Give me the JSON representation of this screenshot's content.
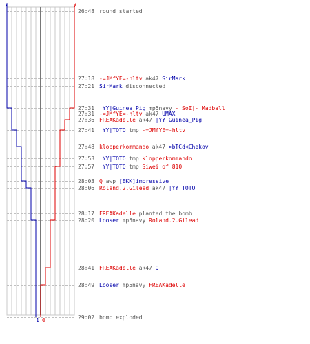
{
  "colors": {
    "team_a": "#0000aa",
    "team_b": "#dd0000",
    "text_gray": "#555555",
    "grid": "#c8c8c8",
    "gridline_dashed": "#c0c0c0",
    "center_line": "#777777"
  },
  "chart_data": {
    "type": "line",
    "y_axis_kind": "time",
    "series": [
      {
        "team": "team_a",
        "points": [
          {
            "time": "26:48",
            "alive": 7
          },
          {
            "time": "27:18",
            "alive": 7
          },
          {
            "time": "27:31",
            "alive": 6
          },
          {
            "time": "27:36",
            "alive": 6
          },
          {
            "time": "27:41",
            "alive": 5
          },
          {
            "time": "27:48",
            "alive": 4
          },
          {
            "time": "27:53",
            "alive": 4
          },
          {
            "time": "27:57",
            "alive": 4
          },
          {
            "time": "28:03",
            "alive": 3
          },
          {
            "time": "28:06",
            "alive": 2
          },
          {
            "time": "28:20",
            "alive": 1
          },
          {
            "time": "29:02",
            "alive": 1
          }
        ]
      },
      {
        "team": "team_b",
        "points": [
          {
            "time": "26:48",
            "alive": 7
          },
          {
            "time": "27:31",
            "alive": 6
          },
          {
            "time": "27:36",
            "alive": 5
          },
          {
            "time": "27:41",
            "alive": 4
          },
          {
            "time": "27:53",
            "alive": 4
          },
          {
            "time": "27:57",
            "alive": 3
          },
          {
            "time": "28:20",
            "alive": 2
          },
          {
            "time": "28:41",
            "alive": 1
          },
          {
            "time": "28:49",
            "alive": 0
          },
          {
            "time": "29:02",
            "alive": 0
          }
        ]
      }
    ],
    "top_labels": {
      "team_a": "7",
      "team_b": "7"
    },
    "bottom_labels": {
      "team_a": "1",
      "team_b": "0"
    },
    "events": [
      {
        "time": "26:48",
        "label": "26:48",
        "parts": [
          {
            "text": "round started",
            "color": "text_gray"
          }
        ]
      },
      {
        "time": "27:18",
        "label": "27:18",
        "parts": [
          {
            "text": "-=JMfYE=-hltv",
            "color": "team_b"
          },
          {
            "text": "ak47",
            "color": "text_gray"
          },
          {
            "text": "SirMark",
            "color": "team_a"
          }
        ]
      },
      {
        "time": "27:21",
        "label": "27:21",
        "parts": [
          {
            "text": "SirMark",
            "color": "team_a"
          },
          {
            "text": "disconnected",
            "color": "text_gray"
          }
        ]
      },
      {
        "time": "27:31",
        "label": "27:31",
        "parts": [
          {
            "text": "|YY|Guinea_Pig",
            "color": "team_a"
          },
          {
            "text": "mp5navy",
            "color": "text_gray"
          },
          {
            "text": "-|SoI|- Madball",
            "color": "team_b"
          }
        ]
      },
      {
        "time": "27:31",
        "label": "27:31",
        "parts": [
          {
            "text": "-=JMfYE=-hltv",
            "color": "team_b"
          },
          {
            "text": "ak47",
            "color": "text_gray"
          },
          {
            "text": "UMAX",
            "color": "team_a"
          }
        ]
      },
      {
        "time": "27:36",
        "label": "27:36",
        "parts": [
          {
            "text": "FREAKadelle",
            "color": "team_b"
          },
          {
            "text": "ak47",
            "color": "text_gray"
          },
          {
            "text": "|YY|Guinea_Pig",
            "color": "team_a"
          }
        ]
      },
      {
        "time": "27:41",
        "label": "27:41",
        "parts": [
          {
            "text": "|YY|TOTO",
            "color": "team_a"
          },
          {
            "text": "tmp",
            "color": "text_gray"
          },
          {
            "text": "-=JMfYE=-hltv",
            "color": "team_b"
          }
        ]
      },
      {
        "time": "27:48",
        "label": "27:48",
        "parts": [
          {
            "text": "klopperkommando",
            "color": "team_b"
          },
          {
            "text": "ak47",
            "color": "text_gray"
          },
          {
            "text": ">bTCd<Chekov",
            "color": "team_a"
          }
        ]
      },
      {
        "time": "27:53",
        "label": "27:53",
        "parts": [
          {
            "text": "|YY|TOTO",
            "color": "team_a"
          },
          {
            "text": "tmp",
            "color": "text_gray"
          },
          {
            "text": "klopperkommando",
            "color": "team_b"
          }
        ]
      },
      {
        "time": "27:57",
        "label": "27:57",
        "parts": [
          {
            "text": "|YY|TOTO",
            "color": "team_a"
          },
          {
            "text": "tmp",
            "color": "text_gray"
          },
          {
            "text": "Siwei of  810",
            "color": "team_b"
          }
        ]
      },
      {
        "time": "28:03",
        "label": "28:03",
        "parts": [
          {
            "text": "Q",
            "color": "team_b"
          },
          {
            "text": "awp",
            "color": "text_gray"
          },
          {
            "text": "[EKK]impressive",
            "color": "team_a"
          }
        ]
      },
      {
        "time": "28:06",
        "label": "28:06",
        "parts": [
          {
            "text": "Roland.2.Gilead",
            "color": "team_b"
          },
          {
            "text": "ak47",
            "color": "text_gray"
          },
          {
            "text": "|YY|TOTO",
            "color": "team_a"
          }
        ]
      },
      {
        "time": "28:17",
        "label": "28:17",
        "parts": [
          {
            "text": "FREAKadelle",
            "color": "team_b"
          },
          {
            "text": "planted the bomb",
            "color": "text_gray"
          }
        ]
      },
      {
        "time": "28:20",
        "label": "28:20",
        "parts": [
          {
            "text": "Looser",
            "color": "team_a"
          },
          {
            "text": "mp5navy",
            "color": "text_gray"
          },
          {
            "text": "Roland.2.Gilead",
            "color": "team_b"
          }
        ]
      },
      {
        "time": "28:41",
        "label": "28:41",
        "parts": [
          {
            "text": "FREAKadelle",
            "color": "team_b"
          },
          {
            "text": "ak47",
            "color": "text_gray"
          },
          {
            "text": "Q",
            "color": "team_a"
          }
        ]
      },
      {
        "time": "28:49",
        "label": "28:49",
        "parts": [
          {
            "text": "Looser",
            "color": "team_a"
          },
          {
            "text": "mp5navy",
            "color": "text_gray"
          },
          {
            "text": "FREAKadelle",
            "color": "team_b"
          }
        ]
      },
      {
        "time": "29:02",
        "label": "29:02",
        "parts": [
          {
            "text": "bomb exploded",
            "color": "text_gray"
          }
        ]
      }
    ]
  }
}
